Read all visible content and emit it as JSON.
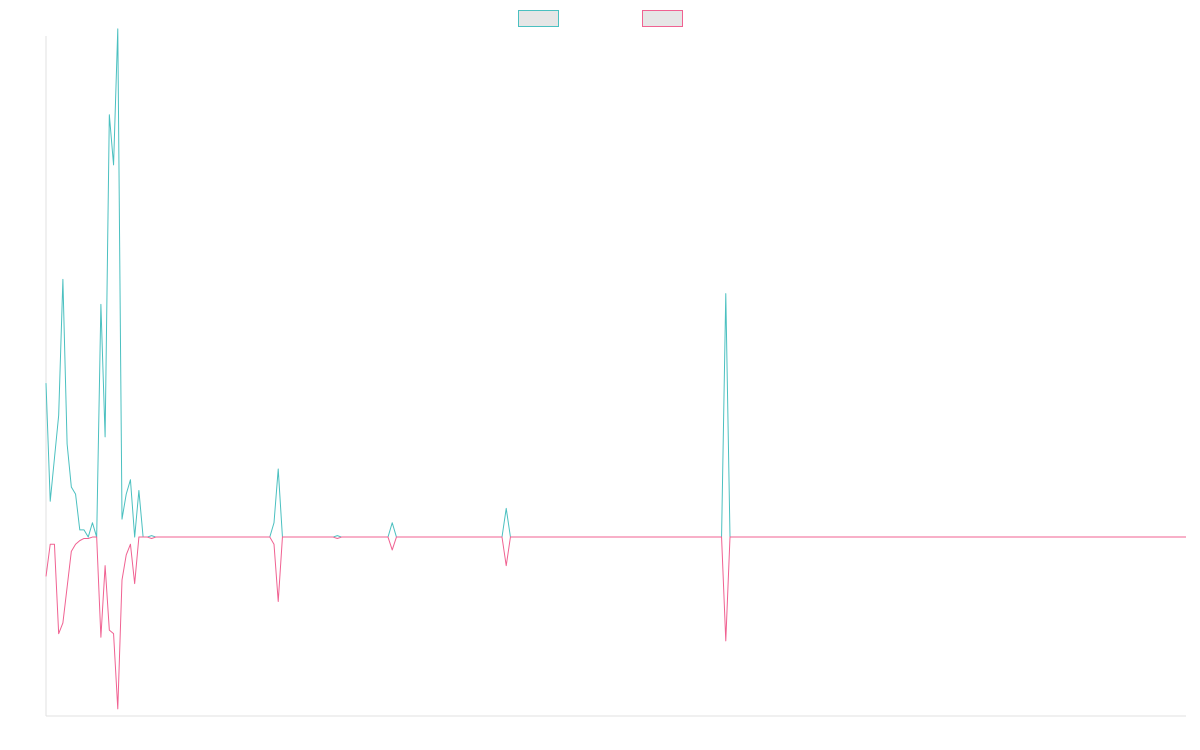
{
  "chart_data": {
    "type": "line",
    "x_count": 271,
    "ylim": [
      -0.25,
      0.7
    ],
    "grid": false,
    "legend_placement": "top-center",
    "series": [
      {
        "color": "#4bc0c0",
        "legend_fill": "#e6e6e6",
        "points": [
          [
            0,
            0.215
          ],
          [
            1,
            0.05
          ],
          [
            3,
            0.17
          ],
          [
            4,
            0.36
          ],
          [
            5,
            0.13
          ],
          [
            6,
            0.07
          ],
          [
            7,
            0.06
          ],
          [
            8,
            0.01
          ],
          [
            9,
            0.01
          ],
          [
            10,
            0.0
          ],
          [
            11,
            0.02
          ],
          [
            12,
            0.0
          ],
          [
            13,
            0.325
          ],
          [
            14,
            0.14
          ],
          [
            15,
            0.59
          ],
          [
            16,
            0.52
          ],
          [
            17,
            0.71
          ],
          [
            18,
            0.025
          ],
          [
            19,
            0.06
          ],
          [
            20,
            0.08
          ],
          [
            21,
            0.0
          ],
          [
            22,
            0.065
          ],
          [
            23,
            0.0
          ],
          [
            24,
            0.0
          ],
          [
            25,
            0.002
          ],
          [
            26,
            0.0
          ],
          [
            53,
            0.0
          ],
          [
            54,
            0.02
          ],
          [
            55,
            0.095
          ],
          [
            56,
            0.0
          ],
          [
            68,
            0.0
          ],
          [
            69,
            0.002
          ],
          [
            70,
            0.0
          ],
          [
            81,
            0.0
          ],
          [
            82,
            0.02
          ],
          [
            83,
            0.0
          ],
          [
            108,
            0.0
          ],
          [
            109,
            0.04
          ],
          [
            110,
            0.0
          ],
          [
            160,
            0.0
          ],
          [
            161,
            0.34
          ],
          [
            162,
            0.0
          ],
          [
            270,
            0.0
          ]
        ]
      },
      {
        "color": "#f06292",
        "legend_fill": "#e6e6e6",
        "points": [
          [
            0,
            -0.055
          ],
          [
            1,
            -0.01
          ],
          [
            2,
            -0.01
          ],
          [
            3,
            -0.135
          ],
          [
            4,
            -0.12
          ],
          [
            5,
            -0.07
          ],
          [
            6,
            -0.02
          ],
          [
            7,
            -0.01
          ],
          [
            8,
            -0.005
          ],
          [
            9,
            -0.002
          ],
          [
            10,
            -0.002
          ],
          [
            11,
            0.0
          ],
          [
            12,
            -0.0
          ],
          [
            13,
            -0.14
          ],
          [
            14,
            -0.04
          ],
          [
            15,
            -0.13
          ],
          [
            16,
            -0.135
          ],
          [
            17,
            -0.24
          ],
          [
            18,
            -0.06
          ],
          [
            19,
            -0.025
          ],
          [
            20,
            -0.01
          ],
          [
            21,
            -0.065
          ],
          [
            22,
            0.0
          ],
          [
            23,
            0.0
          ],
          [
            24,
            0.0
          ],
          [
            25,
            -0.002
          ],
          [
            26,
            0.0
          ],
          [
            53,
            0.0
          ],
          [
            54,
            -0.01
          ],
          [
            55,
            -0.09
          ],
          [
            56,
            0.0
          ],
          [
            68,
            0.0
          ],
          [
            69,
            -0.002
          ],
          [
            70,
            0.0
          ],
          [
            81,
            0.0
          ],
          [
            82,
            -0.018
          ],
          [
            83,
            0.0
          ],
          [
            108,
            0.0
          ],
          [
            109,
            -0.04
          ],
          [
            110,
            0.0
          ],
          [
            160,
            0.0
          ],
          [
            161,
            -0.145
          ],
          [
            162,
            0.0
          ],
          [
            270,
            0.0
          ]
        ]
      }
    ]
  }
}
